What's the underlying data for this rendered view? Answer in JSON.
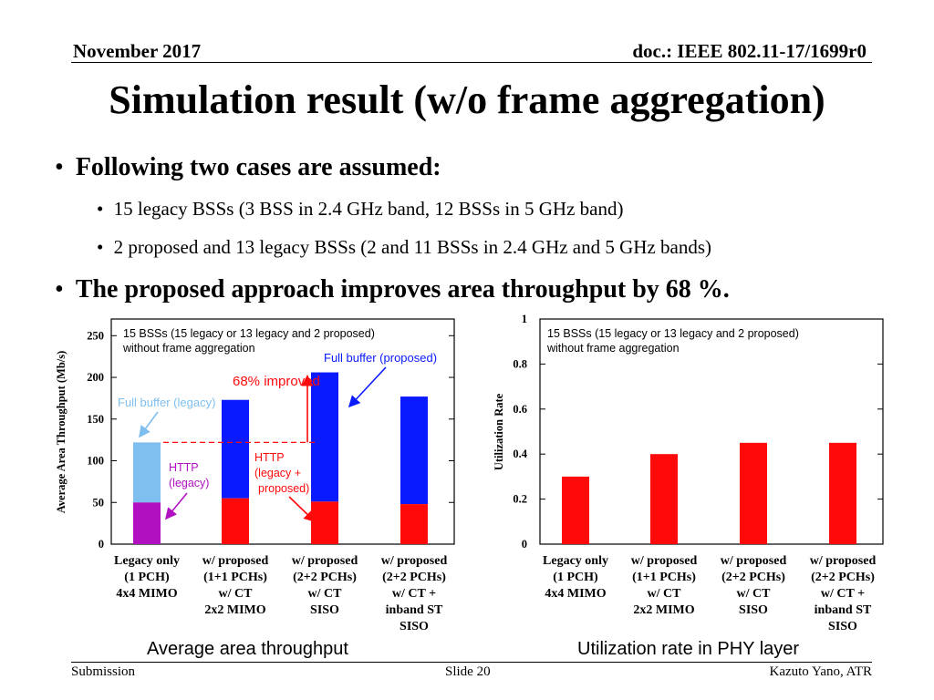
{
  "header": {
    "date": "November 2017",
    "doc": "doc.: IEEE 802.11-17/1699r0"
  },
  "title": "Simulation result (w/o frame aggregation)",
  "bullets": [
    {
      "text": "Following two cases are assumed:"
    },
    {
      "text": "15 legacy BSSs (3 BSS in 2.4 GHz band, 12 BSSs in 5 GHz band)"
    },
    {
      "text": "2 proposed and 13 legacy BSSs (2 and 11 BSSs in 2.4 GHz and 5 GHz bands)"
    },
    {
      "text": "The proposed approach improves area throughput by 68 %."
    }
  ],
  "captions": {
    "left": "Average area throughput",
    "right": "Utilization rate in PHY layer"
  },
  "footer": {
    "left": "Submission",
    "center": "Slide 20",
    "right": "Kazuto Yano, ATR"
  },
  "colors": {
    "blue": "#0a1aff",
    "red": "#ff0a0a",
    "lightblue": "#7fbfef",
    "magenta": "#b010c0",
    "purple": "#9b27b8"
  },
  "chart_data": [
    {
      "type": "bar",
      "title": "15 BSSs (15 legacy or 13 legacy and 2 proposed) without frame aggregation",
      "ylabel": "Average Area Throughput (Mb/s)",
      "ylim": [
        0,
        270
      ],
      "yticks": [
        "0",
        "50",
        "100",
        "150",
        "200",
        "250"
      ],
      "categories": [
        [
          "Legacy only",
          "(1 PCH)",
          "4x4 MIMO"
        ],
        [
          "w/ proposed",
          "(1+1 PCHs)",
          "w/ CT",
          "2x2 MIMO"
        ],
        [
          "w/ proposed",
          "(2+2 PCHs)",
          "w/ CT",
          "SISO"
        ],
        [
          "w/ proposed",
          "(2+2 PCHs)",
          "w/ CT +",
          "inband ST",
          "SISO"
        ]
      ],
      "series": [
        {
          "name": "HTTP",
          "values": [
            50,
            55,
            51,
            48
          ]
        },
        {
          "name": "Full buffer",
          "values": [
            72,
            118,
            155,
            129
          ]
        }
      ],
      "annotations": {
        "improvement": "68% improved",
        "full_buffer_legacy": "Full buffer (legacy)",
        "full_buffer_proposed": "Full buffer (proposed)",
        "http_legacy": [
          "HTTP",
          "(legacy)"
        ],
        "http_proposed": [
          "HTTP",
          "(legacy +",
          "proposed)"
        ]
      }
    },
    {
      "type": "bar",
      "title": "15 BSSs (15 legacy or 13 legacy and 2 proposed) without frame aggregation",
      "ylabel": "Utilization Rate",
      "ylim": [
        0,
        1
      ],
      "yticks": [
        "0",
        "0.2",
        "0.4",
        "0.6",
        "0.8",
        "1"
      ],
      "categories": [
        [
          "Legacy only",
          "(1 PCH)",
          "4x4 MIMO"
        ],
        [
          "w/ proposed",
          "(1+1 PCHs)",
          "w/ CT",
          "2x2 MIMO"
        ],
        [
          "w/ proposed",
          "(2+2 PCHs)",
          "w/ CT",
          "SISO"
        ],
        [
          "w/ proposed",
          "(2+2 PCHs)",
          "w/ CT +",
          "inband ST",
          "SISO"
        ]
      ],
      "values": [
        0.3,
        0.4,
        0.45,
        0.45
      ]
    }
  ]
}
